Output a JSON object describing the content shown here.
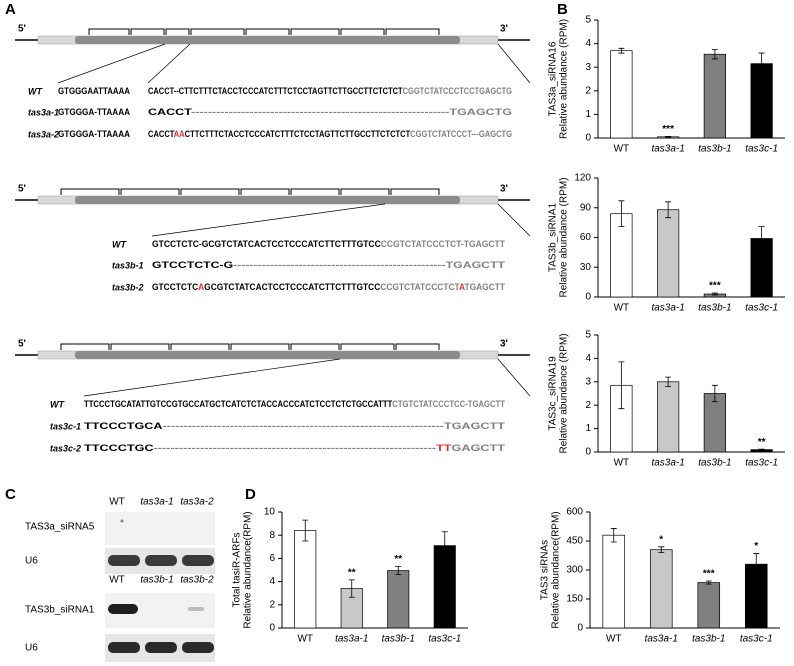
{
  "panel_labels": [
    "A",
    "B",
    "C",
    "D"
  ],
  "panel_a": {
    "genes": [
      {
        "five": "5'",
        "three": "3'",
        "rows": [
          {
            "label": "WT",
            "blocks": [
              [
                {
                  "text": "GTGGGAATTAAAA",
                  "color": "#000000"
                }
              ],
              [
                {
                  "text": "CACCT--CTTCTTTCTACCTCCCATCTTTCTCCTAGTTCTTGCCTTCTCTCT",
                  "color": "#000000"
                },
                {
                  "text": "CGGTCTATCCCTCCTGAGCTG",
                  "color": "#808080"
                }
              ]
            ]
          },
          {
            "label": "tas3a-1",
            "blocks": [
              [
                {
                  "text": "GTGGGA-TTAAAA",
                  "color": "#000000"
                }
              ],
              [
                {
                  "text": "CACCT",
                  "color": "#000000"
                },
                {
                  "text": "--------------------------------------------------------------TGAGCTG",
                  "color": "#808080"
                }
              ]
            ]
          },
          {
            "label": "tas3a-2",
            "blocks": [
              [
                {
                  "text": "GTGGGA-TTAAAA",
                  "color": "#000000"
                }
              ],
              [
                {
                  "text": "CACCT",
                  "color": "#000000"
                },
                {
                  "text": "AA",
                  "color": "#e03030"
                },
                {
                  "text": "CTTCTTTCTACCTCCCATCTTTCTCCTAGTTCTTGCCTTCTCTCT",
                  "color": "#000000"
                },
                {
                  "text": "CGGTCTATCCCT---GAGCTG",
                  "color": "#808080"
                }
              ]
            ]
          }
        ]
      },
      {
        "five": "5'",
        "three": "3'",
        "rows": [
          {
            "label": "WT",
            "blocks": [
              [
                {
                  "text": "GTCCTCTC-GCGTCTATCACTCCTCCCATCTTCTTTGTCC",
                  "color": "#000000"
                },
                {
                  "text": "CCGTCTATCCCTCT-TGAGCTT",
                  "color": "#808080"
                }
              ]
            ]
          },
          {
            "label": "tas3b-1",
            "blocks": [
              [
                {
                  "text": "GTCCTCTC-G",
                  "color": "#000000"
                },
                {
                  "text": "----------------------------------------------------TGAGCTT",
                  "color": "#808080"
                }
              ]
            ]
          },
          {
            "label": "tas3b-2",
            "blocks": [
              [
                {
                  "text": "GTCCTCTC",
                  "color": "#000000"
                },
                {
                  "text": "A",
                  "color": "#e03030"
                },
                {
                  "text": "GCGTCTATCACTCCTCCCATCTTCTTTGTCC",
                  "color": "#000000"
                },
                {
                  "text": "CCGTCTATCCCTCT",
                  "color": "#808080"
                },
                {
                  "text": "A",
                  "color": "#e03030"
                },
                {
                  "text": "TGAGCTT",
                  "color": "#808080"
                }
              ]
            ]
          }
        ]
      },
      {
        "five": "5'",
        "three": "3'",
        "rows": [
          {
            "label": "WT",
            "blocks": [
              [
                {
                  "text": "TTCCCTGCATATTGTCCGTGCCATGCTCATCTCTACCACCCATCTCCTCTCTGCCATTT",
                  "color": "#000000"
                },
                {
                  "text": "CTGTCTATCCCTCC-TGAGCTT",
                  "color": "#808080"
                }
              ]
            ]
          },
          {
            "label": "tas3c-1",
            "blocks": [
              [
                {
                  "text": "TTCCCTGCA",
                  "color": "#000000"
                },
                {
                  "text": "-------------------------------------------------------------------TGAGCTT",
                  "color": "#808080"
                }
              ]
            ]
          },
          {
            "label": "tas3c-2",
            "blocks": [
              [
                {
                  "text": "TTCCCTGC",
                  "color": "#000000"
                },
                {
                  "text": "-------------------------------------------------------------------",
                  "color": "#808080"
                },
                {
                  "text": "TT",
                  "color": "#e03030"
                },
                {
                  "text": "GAGCTT",
                  "color": "#808080"
                }
              ]
            ]
          }
        ]
      }
    ]
  },
  "panel_c": {
    "blots": [
      {
        "lanes": [
          "WT",
          "tas3a-1",
          "tas3a-2"
        ],
        "rows": [
          "TAS3a_siRNA5",
          "U6"
        ]
      },
      {
        "lanes": [
          "WT",
          "tas3b-1",
          "tas3b-2"
        ],
        "rows": [
          "TAS3b_siRNA1",
          "U6"
        ]
      }
    ]
  },
  "chart_data": [
    {
      "type": "bar",
      "ylabel": [
        "TAS3a_siRNA16",
        "Relative abundance (RPM)"
      ],
      "categories": [
        "WT",
        "tas3a-1",
        "tas3b-1",
        "tas3c-1"
      ],
      "values": [
        3.7,
        0.05,
        3.55,
        3.15
      ],
      "errors": [
        0.1,
        0.02,
        0.2,
        0.45
      ],
      "colors": [
        "#ffffff",
        "#c8c8c8",
        "#7f7f7f",
        "#000000"
      ],
      "ylim": [
        0,
        5
      ],
      "yticks": [
        0,
        1,
        2,
        3,
        4,
        5
      ],
      "annotations": [
        {
          "index": 1,
          "text": "***"
        }
      ]
    },
    {
      "type": "bar",
      "ylabel": [
        "TAS3b_siRNA1",
        "Relative abundance (RPM)"
      ],
      "categories": [
        "WT",
        "tas3a-1",
        "tas3b-1",
        "tas3c-1"
      ],
      "values": [
        84,
        88,
        3,
        59
      ],
      "errors": [
        13,
        8,
        1,
        12
      ],
      "colors": [
        "#ffffff",
        "#c8c8c8",
        "#7f7f7f",
        "#000000"
      ],
      "ylim": [
        0,
        120
      ],
      "yticks": [
        0,
        30,
        60,
        90,
        120
      ],
      "annotations": [
        {
          "index": 2,
          "text": "***"
        }
      ]
    },
    {
      "type": "bar",
      "ylabel": [
        "TAS3c_siRNA19",
        "Relative abundance (RPM)"
      ],
      "categories": [
        "WT",
        "tas3a-1",
        "tas3b-1",
        "tas3c-1"
      ],
      "values": [
        2.85,
        3.0,
        2.5,
        0.1
      ],
      "errors": [
        1.0,
        0.2,
        0.35,
        0.02
      ],
      "colors": [
        "#ffffff",
        "#c8c8c8",
        "#7f7f7f",
        "#000000"
      ],
      "ylim": [
        0,
        5
      ],
      "yticks": [
        0,
        1,
        2,
        3,
        4,
        5
      ],
      "annotations": [
        {
          "index": 3,
          "text": "**"
        }
      ]
    },
    {
      "type": "bar",
      "ylabel": [
        "Total tasiR-ARFs",
        "Relative abundance(RPM)"
      ],
      "categories": [
        "WT",
        "tas3a-1",
        "tas3b-1",
        "tas3c-1"
      ],
      "values": [
        8.4,
        3.4,
        4.95,
        7.1
      ],
      "errors": [
        0.9,
        0.75,
        0.35,
        1.2
      ],
      "colors": [
        "#ffffff",
        "#c8c8c8",
        "#7f7f7f",
        "#000000"
      ],
      "ylim": [
        0,
        10
      ],
      "yticks": [
        0,
        2,
        4,
        6,
        8,
        10
      ],
      "annotations": [
        {
          "index": 1,
          "text": "**"
        },
        {
          "index": 2,
          "text": "**"
        }
      ]
    },
    {
      "type": "bar",
      "ylabel": [
        "TAS3 siRNAs",
        "Relative abundance(RPM)"
      ],
      "categories": [
        "WT",
        "tas3a-1",
        "tas3b-1",
        "tas3c-1"
      ],
      "values": [
        480,
        405,
        235,
        330
      ],
      "errors": [
        35,
        15,
        8,
        55
      ],
      "colors": [
        "#ffffff",
        "#c8c8c8",
        "#7f7f7f",
        "#000000"
      ],
      "ylim": [
        0,
        600
      ],
      "yticks": [
        0,
        150,
        300,
        450,
        600
      ],
      "annotations": [
        {
          "index": 1,
          "text": "*"
        },
        {
          "index": 2,
          "text": "***"
        },
        {
          "index": 3,
          "text": "*"
        }
      ]
    }
  ]
}
